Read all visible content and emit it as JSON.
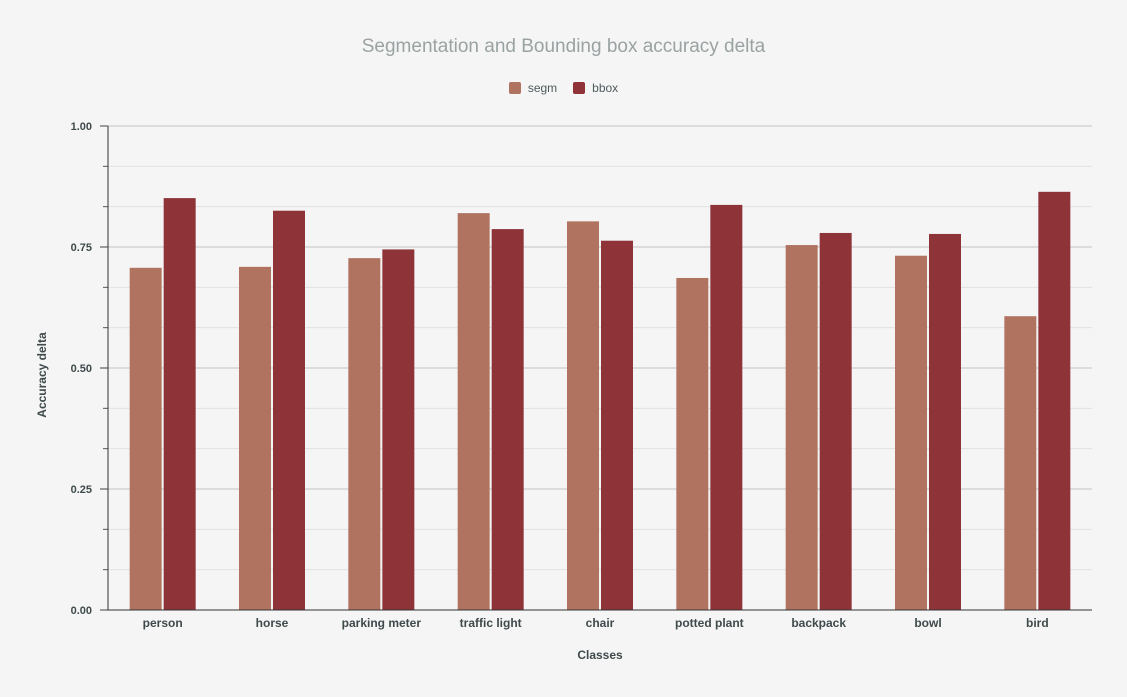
{
  "chart_data": {
    "type": "bar",
    "title": "Segmentation and Bounding box accuracy delta",
    "xlabel": "Classes",
    "ylabel": "Accuracy delta",
    "categories": [
      "person",
      "horse",
      "parking meter",
      "traffic light",
      "chair",
      "potted plant",
      "backpack",
      "bowl",
      "bird"
    ],
    "series": [
      {
        "name": "segm",
        "color": "#b07360",
        "values": [
          0.707,
          0.709,
          0.727,
          0.82,
          0.803,
          0.686,
          0.754,
          0.732,
          0.607
        ]
      },
      {
        "name": "bbox",
        "color": "#8e3439",
        "values": [
          0.851,
          0.825,
          0.745,
          0.787,
          0.763,
          0.837,
          0.779,
          0.777,
          0.864
        ]
      }
    ],
    "ylim": [
      0,
      1.0
    ],
    "yticks": [
      "0.00",
      "0.25",
      "0.50",
      "0.75",
      "1.00"
    ],
    "ytick_values": [
      0,
      0.25,
      0.5,
      0.75,
      1.0
    ],
    "legend_position": "top-center",
    "grid": true
  }
}
